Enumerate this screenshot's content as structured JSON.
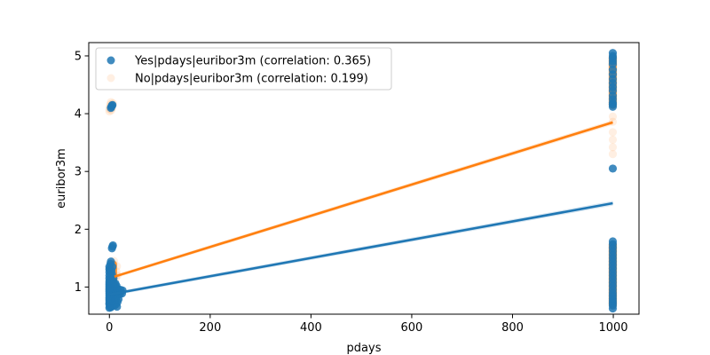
{
  "chart_data": {
    "type": "scatter",
    "title": "",
    "xlabel": "pdays",
    "ylabel": "euribor3m",
    "xlim": [
      -41,
      1051
    ],
    "ylim": [
      0.53,
      5.23
    ],
    "xticks": [
      0,
      200,
      400,
      600,
      800,
      1000
    ],
    "yticks": [
      1,
      2,
      3,
      4,
      5
    ],
    "grid": false,
    "legend_position": "top-left",
    "series": [
      {
        "name": "Yes|pdays|euribor3m (correlation: 0.365)",
        "color": "#1f77b4",
        "marker_alpha": 0.85,
        "points": [
          [
            0,
            0.64
          ],
          [
            0,
            0.7
          ],
          [
            0,
            0.72
          ],
          [
            0,
            0.76
          ],
          [
            0,
            0.79
          ],
          [
            0,
            0.82
          ],
          [
            0,
            0.86
          ],
          [
            0,
            0.89
          ],
          [
            0,
            0.92
          ],
          [
            0,
            0.95
          ],
          [
            0,
            0.98
          ],
          [
            0,
            1.01
          ],
          [
            0,
            1.04
          ],
          [
            0,
            1.07
          ],
          [
            0,
            1.1
          ],
          [
            0,
            1.15
          ],
          [
            0,
            1.2
          ],
          [
            0,
            1.26
          ],
          [
            0,
            1.31
          ],
          [
            0,
            1.35
          ],
          [
            1,
            0.66
          ],
          [
            1,
            0.74
          ],
          [
            1,
            0.88
          ],
          [
            1,
            1.0
          ],
          [
            1,
            1.12
          ],
          [
            1,
            1.3
          ],
          [
            2,
            0.7
          ],
          [
            2,
            0.85
          ],
          [
            2,
            1.05
          ],
          [
            2,
            1.25
          ],
          [
            2,
            1.4
          ],
          [
            3,
            0.65
          ],
          [
            3,
            0.8
          ],
          [
            3,
            0.97
          ],
          [
            3,
            1.18
          ],
          [
            3,
            1.44
          ],
          [
            4,
            0.72
          ],
          [
            4,
            0.9
          ],
          [
            4,
            1.08
          ],
          [
            4,
            1.28
          ],
          [
            5,
            0.67
          ],
          [
            5,
            0.83
          ],
          [
            5,
            1.0
          ],
          [
            5,
            1.22
          ],
          [
            6,
            0.75
          ],
          [
            6,
            0.93
          ],
          [
            6,
            1.11
          ],
          [
            6,
            1.35
          ],
          [
            7,
            0.69
          ],
          [
            7,
            0.87
          ],
          [
            7,
            1.03
          ],
          [
            8,
            0.78
          ],
          [
            8,
            0.95
          ],
          [
            8,
            1.15
          ],
          [
            9,
            0.71
          ],
          [
            9,
            0.9
          ],
          [
            9,
            1.06
          ],
          [
            10,
            0.68
          ],
          [
            10,
            0.84
          ],
          [
            10,
            1.0
          ],
          [
            11,
            0.73
          ],
          [
            11,
            0.96
          ],
          [
            12,
            0.77
          ],
          [
            12,
            0.99
          ],
          [
            12,
            1.06
          ],
          [
            13,
            0.7
          ],
          [
            13,
            0.89
          ],
          [
            14,
            0.82
          ],
          [
            14,
            1.02
          ],
          [
            15,
            0.66
          ],
          [
            15,
            0.91
          ],
          [
            16,
            0.74
          ],
          [
            16,
            0.97
          ],
          [
            17,
            0.86
          ],
          [
            18,
            0.79
          ],
          [
            18,
            0.93
          ],
          [
            21,
            0.88
          ],
          [
            22,
            0.95
          ],
          [
            25,
            0.89
          ],
          [
            26,
            0.94
          ],
          [
            3,
            4.1
          ],
          [
            4,
            4.12
          ],
          [
            5,
            4.14
          ],
          [
            6,
            4.15
          ],
          [
            5,
            1.67
          ],
          [
            6,
            1.7
          ],
          [
            7,
            1.72
          ],
          [
            999,
            0.63
          ],
          [
            999,
            0.68
          ],
          [
            999,
            0.72
          ],
          [
            999,
            0.76
          ],
          [
            999,
            0.8
          ],
          [
            999,
            0.85
          ],
          [
            999,
            0.9
          ],
          [
            999,
            0.96
          ],
          [
            999,
            1.02
          ],
          [
            999,
            1.08
          ],
          [
            999,
            1.14
          ],
          [
            999,
            1.2
          ],
          [
            999,
            1.26
          ],
          [
            999,
            1.32
          ],
          [
            999,
            1.38
          ],
          [
            999,
            1.44
          ],
          [
            999,
            1.5
          ],
          [
            999,
            1.56
          ],
          [
            999,
            1.62
          ],
          [
            999,
            1.68
          ],
          [
            999,
            1.74
          ],
          [
            999,
            1.79
          ],
          [
            999,
            3.05
          ],
          [
            999,
            4.12
          ],
          [
            999,
            4.16
          ],
          [
            999,
            4.19
          ],
          [
            999,
            4.25
          ],
          [
            999,
            4.31
          ],
          [
            999,
            4.4
          ],
          [
            999,
            4.46
          ],
          [
            999,
            4.53
          ],
          [
            999,
            4.6
          ],
          [
            999,
            4.68
          ],
          [
            999,
            4.76
          ],
          [
            999,
            4.86
          ],
          [
            999,
            4.91
          ],
          [
            999,
            4.96
          ],
          [
            999,
            5.0
          ],
          [
            999,
            5.05
          ]
        ],
        "trend": {
          "x": [
            0,
            999
          ],
          "y": [
            0.87,
            2.45
          ],
          "band": [
            0.03,
            0.04
          ]
        }
      },
      {
        "name": "No|pdays|euribor3m (correlation: 0.199)",
        "color": "#ff7f0e",
        "marker_alpha": 0.12,
        "points": [
          [
            0,
            4.04
          ],
          [
            0,
            4.08
          ],
          [
            1,
            4.12
          ],
          [
            2,
            4.16
          ],
          [
            3,
            4.2
          ],
          [
            4,
            4.06
          ],
          [
            5,
            4.1
          ],
          [
            6,
            4.14
          ],
          [
            7,
            4.18
          ],
          [
            1,
            0.7
          ],
          [
            2,
            0.8
          ],
          [
            3,
            0.92
          ],
          [
            4,
            1.02
          ],
          [
            5,
            1.12
          ],
          [
            6,
            1.22
          ],
          [
            7,
            1.3
          ],
          [
            8,
            1.4
          ],
          [
            9,
            1.45
          ],
          [
            10,
            0.74
          ],
          [
            11,
            0.88
          ],
          [
            12,
            1.0
          ],
          [
            13,
            1.16
          ],
          [
            14,
            1.27
          ],
          [
            15,
            1.36
          ],
          [
            16,
            1.2
          ],
          [
            999,
            3.3
          ],
          [
            999,
            3.42
          ],
          [
            999,
            3.55
          ],
          [
            999,
            3.68
          ],
          [
            999,
            3.86
          ],
          [
            999,
            3.95
          ]
        ],
        "trend": {
          "x": [
            10,
            999
          ],
          "y": [
            1.18,
            3.85
          ],
          "band": [
            0.03,
            0.04
          ]
        }
      }
    ],
    "dense_strips": [
      {
        "series": 1,
        "x": 999,
        "y_start": 0.62,
        "y_end": 1.8,
        "color": "#ff7f0e",
        "opacity": 0.85
      },
      {
        "series": 1,
        "x": 999,
        "y_start": 4.08,
        "y_end": 5.05,
        "color": "#ff7f0e",
        "opacity": 0.75
      },
      {
        "series": 1,
        "x": 7,
        "y_start": 0.62,
        "y_end": 1.46,
        "color": "#ff7f0e",
        "opacity": 0.8
      }
    ]
  }
}
